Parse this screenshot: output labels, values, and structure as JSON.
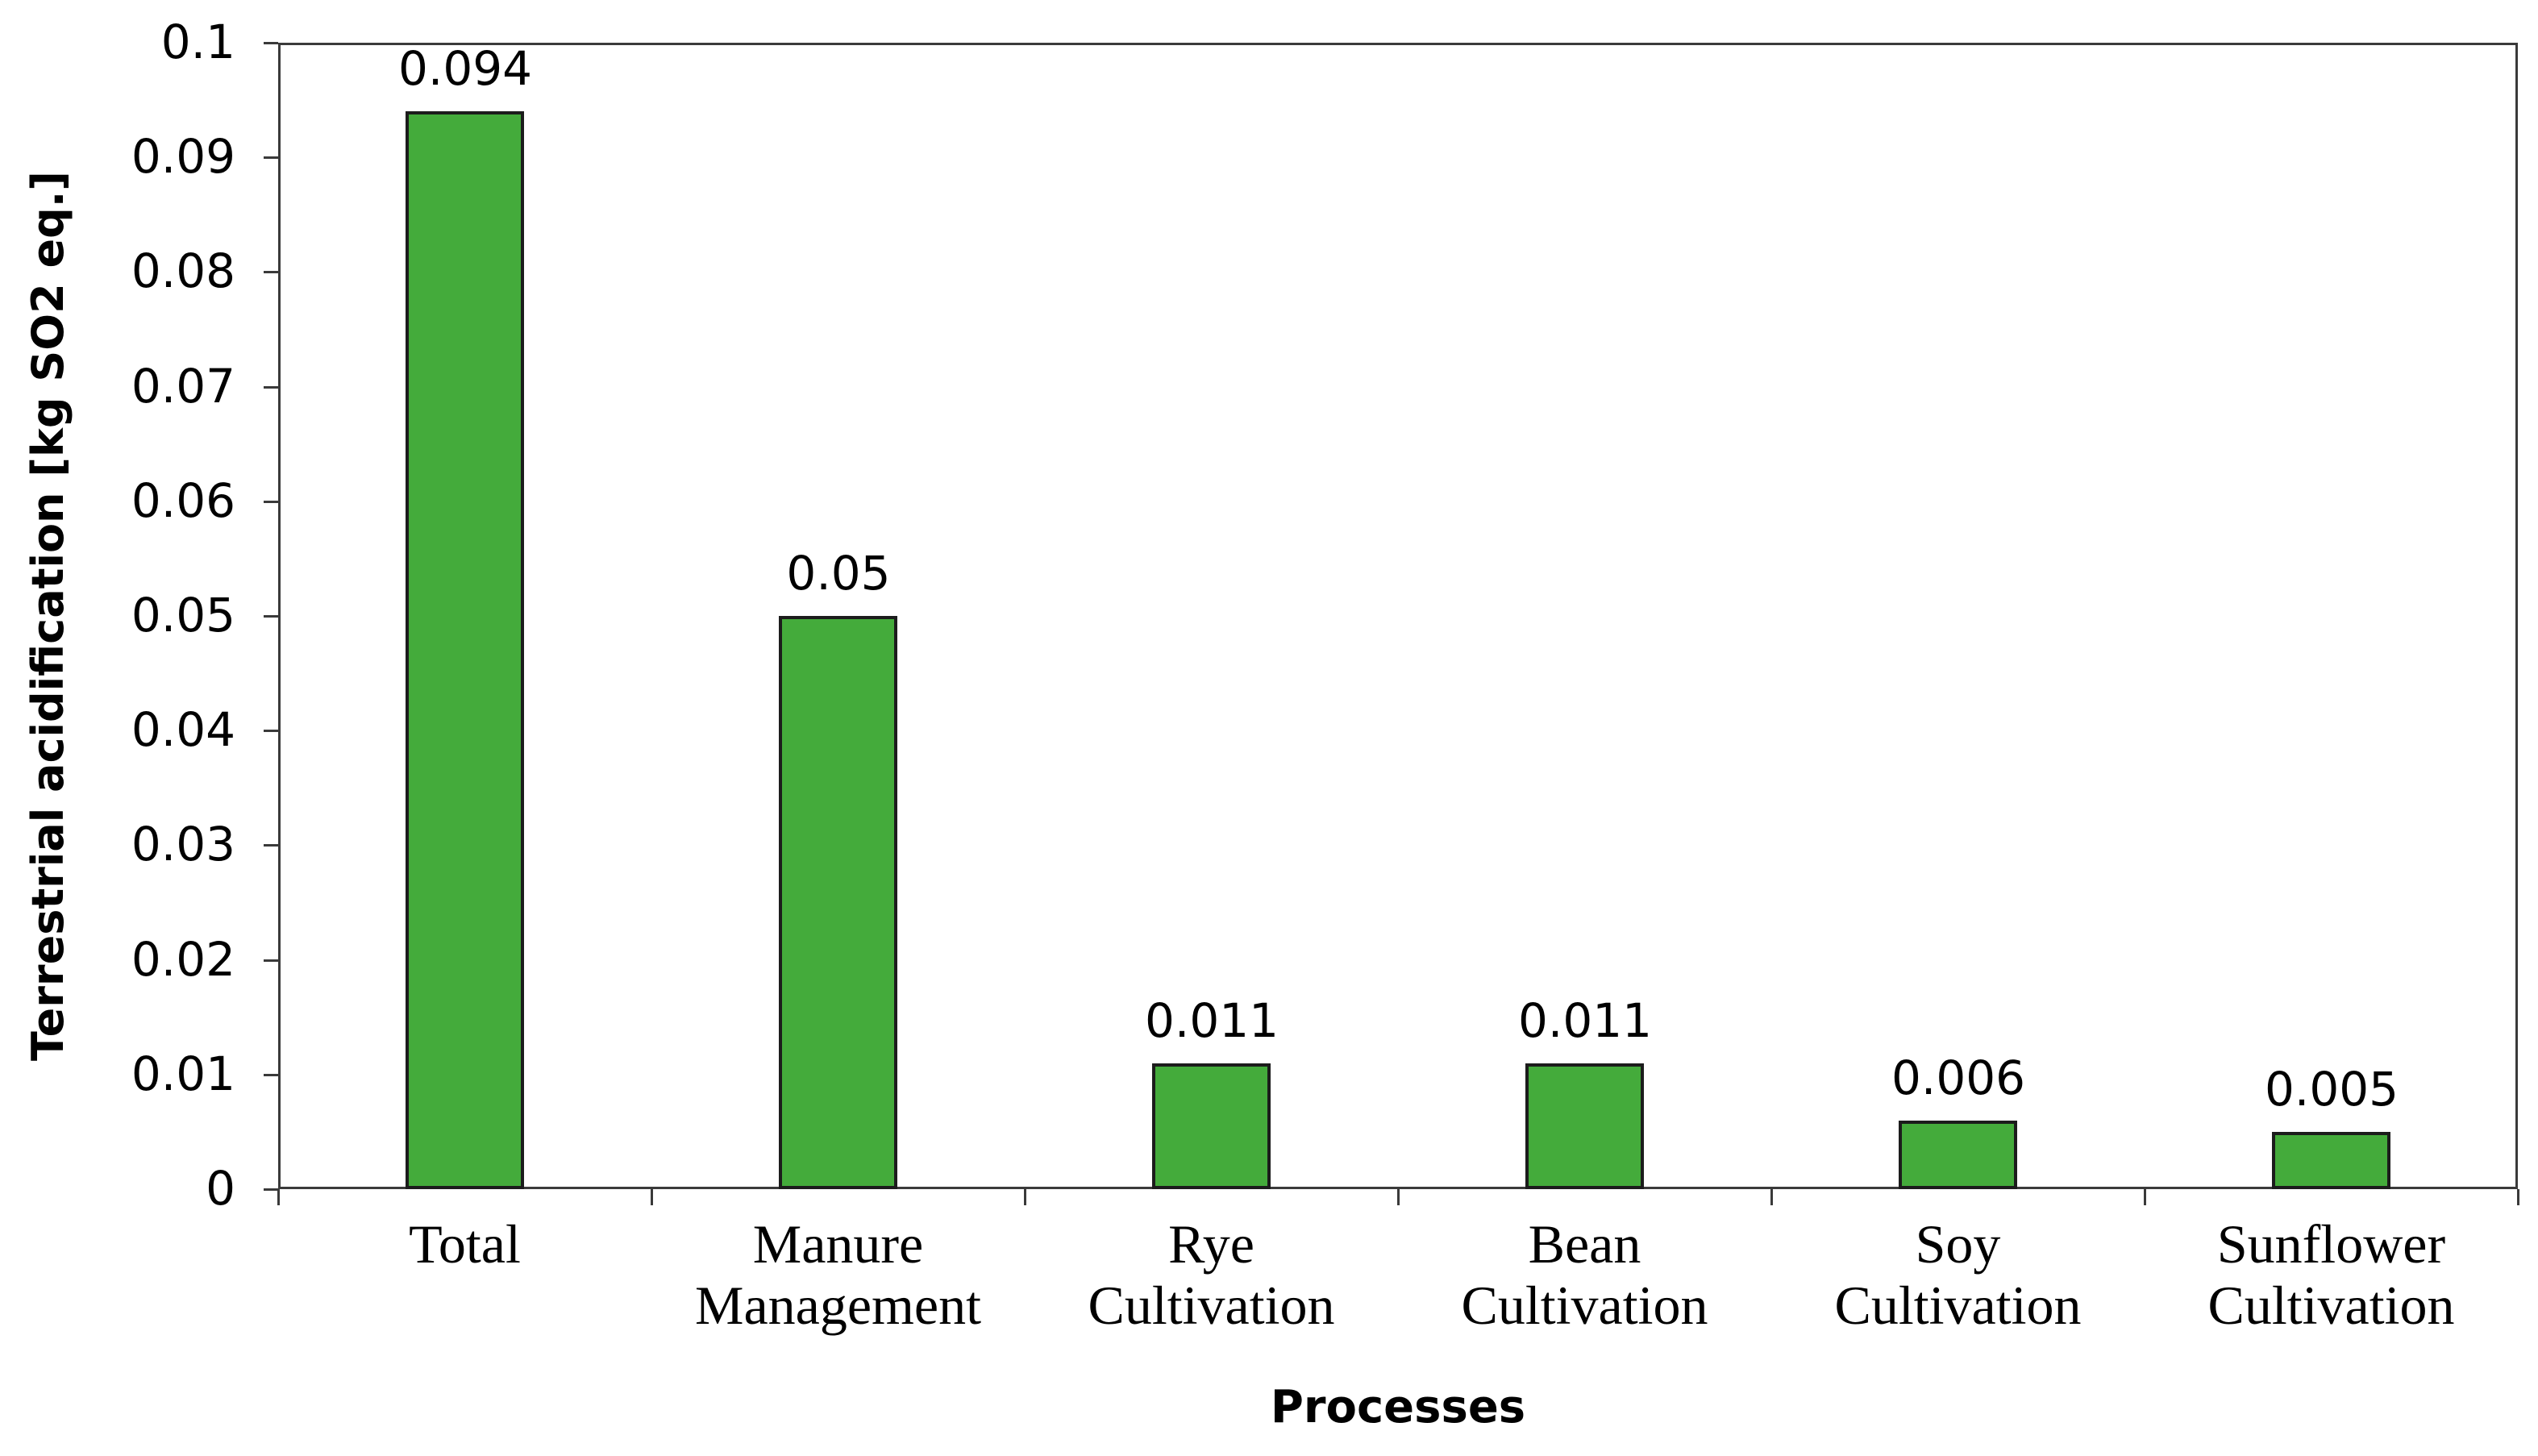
{
  "chart_data": {
    "type": "bar",
    "title": "",
    "xlabel": "Processes",
    "ylabel": "Terrestrial acidification [kg SO2 eq.]",
    "categories": [
      "Total",
      "Manure Management",
      "Rye Cultivation",
      "Bean Cultivation",
      "Soy Cultivation",
      "Sunflower Cultivation"
    ],
    "category_lines": [
      [
        "Total"
      ],
      [
        "Manure",
        "Management"
      ],
      [
        "Rye",
        "Cultivation"
      ],
      [
        "Bean",
        "Cultivation"
      ],
      [
        "Soy",
        "Cultivation"
      ],
      [
        "Sunflower",
        "Cultivation"
      ]
    ],
    "values": [
      0.094,
      0.05,
      0.011,
      0.011,
      0.006,
      0.005
    ],
    "value_labels": [
      "0.094",
      "0.05",
      "0.011",
      "0.011",
      "0.006",
      "0.005"
    ],
    "ylim": [
      0,
      0.1
    ],
    "ytick_step": 0.01,
    "ytick_labels": [
      "0",
      "0.01",
      "0.02",
      "0.03",
      "0.04",
      "0.05",
      "0.06",
      "0.07",
      "0.08",
      "0.09",
      "0.1"
    ],
    "grid": false,
    "legend": "none",
    "colors": {
      "bar_fill": "#44ab3b",
      "bar_border": "#1c1c1c",
      "axis": "#3a3a3a",
      "text": "#000000",
      "background": "#ffffff"
    }
  }
}
